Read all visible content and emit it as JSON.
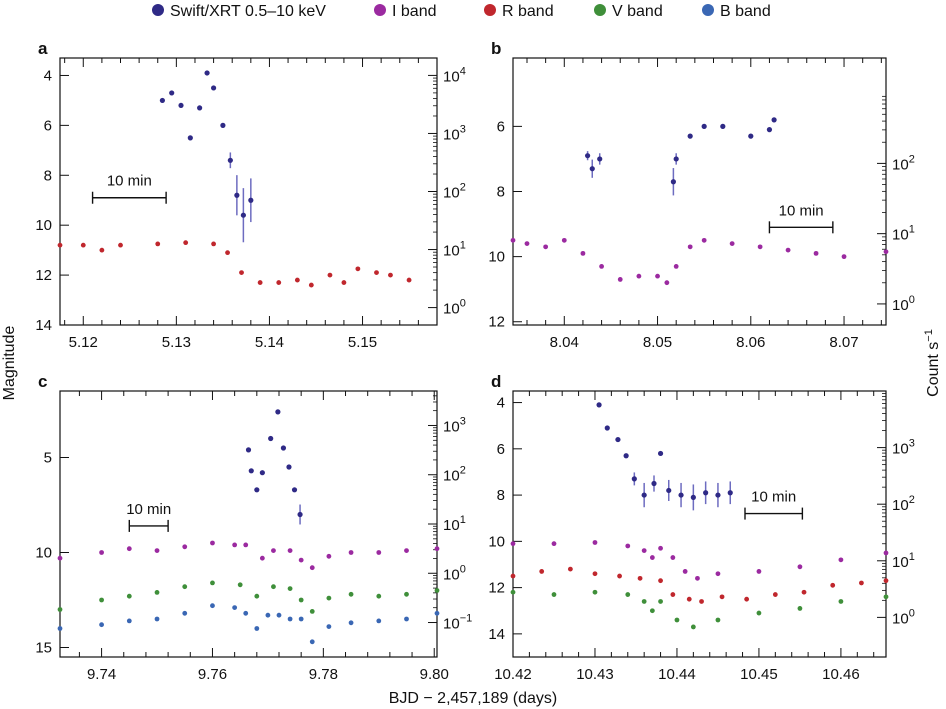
{
  "xlabel": "BJD − 2,457,189 (days)",
  "ylabel_left": "Magnitude",
  "ylabel_right_base": "Count s",
  "ylabel_right_sup": "−1",
  "legend": [
    {
      "label": "Swift/XRT 0.5–10 keV",
      "color": "#2f2a86"
    },
    {
      "label": "I band",
      "color": "#9b2aa0"
    },
    {
      "label": "R band",
      "color": "#c0272d"
    },
    {
      "label": "V band",
      "color": "#3f8f3a"
    },
    {
      "label": "B band",
      "color": "#3a67b4"
    }
  ],
  "chart_data": [
    {
      "panel": "a",
      "type": "scatter",
      "xlim": [
        5.1175,
        5.158
      ],
      "xticks": [
        5.12,
        5.13,
        5.14,
        5.15
      ],
      "ylim_mag": [
        14,
        3.3
      ],
      "yticks_mag": [
        4,
        6,
        8,
        10,
        12,
        14
      ],
      "y2_log_range": [
        -0.3,
        4.3
      ],
      "y2ticks": [
        "10^0",
        "10^1",
        "10^2",
        "10^3",
        "10^4"
      ],
      "scale_bar": {
        "label": "10 min",
        "x_start": 5.121,
        "x_end": 5.1289,
        "mag": 8.9
      },
      "series": [
        {
          "band": "R",
          "color": "#c0272d",
          "pts": [
            [
              5.1175,
              10.8
            ],
            [
              5.12,
              10.8
            ],
            [
              5.122,
              11.0
            ],
            [
              5.124,
              10.8
            ],
            [
              5.128,
              10.75
            ],
            [
              5.131,
              10.7
            ],
            [
              5.134,
              10.75
            ],
            [
              5.1355,
              11.1
            ],
            [
              5.137,
              11.9
            ],
            [
              5.139,
              12.3
            ],
            [
              5.141,
              12.3
            ],
            [
              5.143,
              12.2
            ],
            [
              5.1445,
              12.4
            ],
            [
              5.1465,
              12.0
            ],
            [
              5.148,
              12.3
            ],
            [
              5.1495,
              11.75
            ],
            [
              5.1515,
              11.9
            ],
            [
              5.153,
              12.0
            ],
            [
              5.155,
              12.2
            ]
          ]
        },
        {
          "band": "X-ray",
          "color": "#2f2a86",
          "pts": [
            [
              5.1285,
              5.0
            ],
            [
              5.1295,
              4.7
            ],
            [
              5.1305,
              5.2
            ],
            [
              5.1315,
              6.5
            ],
            [
              5.1325,
              5.3
            ],
            [
              5.1333,
              3.9
            ],
            [
              5.134,
              4.5
            ],
            [
              5.135,
              6.0
            ],
            [
              5.1358,
              7.4
            ],
            [
              5.1365,
              8.8
            ],
            [
              5.1372,
              9.6
            ],
            [
              5.138,
              9.0
            ]
          ]
        }
      ]
    },
    {
      "panel": "b",
      "type": "scatter",
      "xlim": [
        8.0345,
        8.0745
      ],
      "xticks": [
        8.04,
        8.05,
        8.06,
        8.07
      ],
      "ylim_mag": [
        12.1,
        3.9
      ],
      "yticks_mag": [
        6,
        8,
        10,
        12
      ],
      "y2_log_range": [
        -0.3,
        3.5
      ],
      "y2ticks": [
        "10^0",
        "10^1",
        "10^2"
      ],
      "scale_bar": {
        "label": "10 min",
        "x_start": 8.062,
        "x_end": 8.0688,
        "mag": 9.1
      },
      "series": [
        {
          "band": "I",
          "color": "#9b2aa0",
          "pts": [
            [
              8.0345,
              9.5
            ],
            [
              8.036,
              9.6
            ],
            [
              8.038,
              9.7
            ],
            [
              8.04,
              9.5
            ],
            [
              8.042,
              9.9
            ],
            [
              8.044,
              10.3
            ],
            [
              8.046,
              10.7
            ],
            [
              8.048,
              10.6
            ],
            [
              8.05,
              10.6
            ],
            [
              8.051,
              10.8
            ],
            [
              8.052,
              10.3
            ],
            [
              8.0535,
              9.7
            ],
            [
              8.055,
              9.5
            ],
            [
              8.058,
              9.6
            ],
            [
              8.061,
              9.7
            ],
            [
              8.064,
              9.8
            ],
            [
              8.067,
              9.9
            ],
            [
              8.07,
              10.0
            ],
            [
              8.0745,
              9.85
            ]
          ]
        },
        {
          "band": "X-ray",
          "color": "#2f2a86",
          "pts": [
            [
              8.0425,
              6.9
            ],
            [
              8.043,
              7.3
            ],
            [
              8.0438,
              7.0
            ],
            [
              8.0517,
              7.7
            ],
            [
              8.052,
              7.0
            ],
            [
              8.0535,
              6.3
            ],
            [
              8.055,
              6.0
            ],
            [
              8.057,
              6.0
            ],
            [
              8.06,
              6.3
            ],
            [
              8.062,
              6.1
            ],
            [
              8.0625,
              5.8
            ]
          ]
        }
      ]
    },
    {
      "panel": "c",
      "type": "scatter",
      "xlim": [
        9.7325,
        9.8005
      ],
      "xticks": [
        9.74,
        9.76,
        9.78,
        9.8
      ],
      "ylim_mag": [
        15.5,
        1.5
      ],
      "yticks_mag": [
        5,
        10,
        15
      ],
      "y2_log_range": [
        -1.7,
        3.7
      ],
      "y2ticks": [
        "10^-1",
        "10^0",
        "10^1",
        "10^2",
        "10^3"
      ],
      "scale_bar": {
        "label": "10 min",
        "x_start": 9.745,
        "x_end": 9.752,
        "mag": 8.6
      },
      "series": [
        {
          "band": "I",
          "color": "#9b2aa0",
          "pts": [
            [
              9.7325,
              10.3
            ],
            [
              9.74,
              10.0
            ],
            [
              9.745,
              9.8
            ],
            [
              9.75,
              9.9
            ],
            [
              9.755,
              9.7
            ],
            [
              9.76,
              9.5
            ],
            [
              9.764,
              9.6
            ],
            [
              9.766,
              9.6
            ],
            [
              9.769,
              10.3
            ],
            [
              9.771,
              9.9
            ],
            [
              9.774,
              9.9
            ],
            [
              9.776,
              10.4
            ],
            [
              9.778,
              10.8
            ],
            [
              9.781,
              10.2
            ],
            [
              9.785,
              10.0
            ],
            [
              9.79,
              10.0
            ],
            [
              9.795,
              9.9
            ],
            [
              9.8005,
              9.8
            ]
          ]
        },
        {
          "band": "V",
          "color": "#3f8f3a",
          "pts": [
            [
              9.7325,
              13.0
            ],
            [
              9.74,
              12.5
            ],
            [
              9.745,
              12.3
            ],
            [
              9.75,
              12.1
            ],
            [
              9.755,
              11.8
            ],
            [
              9.76,
              11.6
            ],
            [
              9.765,
              11.7
            ],
            [
              9.768,
              12.3
            ],
            [
              9.771,
              11.8
            ],
            [
              9.774,
              11.9
            ],
            [
              9.776,
              12.5
            ],
            [
              9.778,
              13.1
            ],
            [
              9.781,
              12.4
            ],
            [
              9.785,
              12.2
            ],
            [
              9.79,
              12.3
            ],
            [
              9.795,
              12.2
            ],
            [
              9.8005,
              12.0
            ]
          ]
        },
        {
          "band": "B",
          "color": "#3a67b4",
          "pts": [
            [
              9.7325,
              14.0
            ],
            [
              9.74,
              13.8
            ],
            [
              9.745,
              13.6
            ],
            [
              9.75,
              13.5
            ],
            [
              9.755,
              13.2
            ],
            [
              9.76,
              12.8
            ],
            [
              9.764,
              12.9
            ],
            [
              9.766,
              13.2
            ],
            [
              9.768,
              14.0
            ],
            [
              9.77,
              13.3
            ],
            [
              9.772,
              13.3
            ],
            [
              9.774,
              13.5
            ],
            [
              9.776,
              13.5
            ],
            [
              9.778,
              14.7
            ],
            [
              9.781,
              13.9
            ],
            [
              9.785,
              13.7
            ],
            [
              9.79,
              13.6
            ],
            [
              9.795,
              13.5
            ],
            [
              9.8005,
              13.2
            ]
          ]
        },
        {
          "band": "X-ray",
          "color": "#2f2a86",
          "pts": [
            [
              9.7665,
              4.6
            ],
            [
              9.767,
              5.7
            ],
            [
              9.768,
              6.7
            ],
            [
              9.769,
              5.8
            ],
            [
              9.7705,
              4.0
            ],
            [
              9.7718,
              2.6
            ],
            [
              9.7728,
              4.5
            ],
            [
              9.7738,
              5.5
            ],
            [
              9.7748,
              6.7
            ],
            [
              9.7758,
              8.0
            ]
          ]
        }
      ]
    },
    {
      "panel": "d",
      "type": "scatter",
      "xlim": [
        10.42,
        10.4655
      ],
      "xticks": [
        10.42,
        10.43,
        10.44,
        10.45,
        10.46
      ],
      "ylim_mag": [
        15.0,
        3.5
      ],
      "yticks_mag": [
        4,
        6,
        8,
        10,
        12,
        14
      ],
      "y2_log_range": [
        -0.7,
        4.0
      ],
      "y2ticks": [
        "10^0",
        "10^1",
        "10^2",
        "10^3"
      ],
      "scale_bar": {
        "label": "10 min",
        "x_start": 10.4483,
        "x_end": 10.4553,
        "mag": 8.8
      },
      "series": [
        {
          "band": "I",
          "color": "#9b2aa0",
          "pts": [
            [
              10.42,
              10.1
            ],
            [
              10.425,
              10.1
            ],
            [
              10.43,
              10.05
            ],
            [
              10.434,
              10.2
            ],
            [
              10.436,
              10.4
            ],
            [
              10.437,
              10.7
            ],
            [
              10.438,
              10.3
            ],
            [
              10.4395,
              10.7
            ],
            [
              10.441,
              11.3
            ],
            [
              10.4425,
              11.6
            ],
            [
              10.445,
              11.4
            ],
            [
              10.45,
              11.3
            ],
            [
              10.455,
              11.1
            ],
            [
              10.46,
              10.8
            ],
            [
              10.4655,
              10.5
            ]
          ]
        },
        {
          "band": "R",
          "color": "#c0272d",
          "pts": [
            [
              10.42,
              11.5
            ],
            [
              10.4235,
              11.3
            ],
            [
              10.427,
              11.2
            ],
            [
              10.43,
              11.4
            ],
            [
              10.433,
              11.5
            ],
            [
              10.4355,
              11.6
            ],
            [
              10.438,
              11.7
            ],
            [
              10.4395,
              12.3
            ],
            [
              10.4415,
              12.5
            ],
            [
              10.443,
              12.6
            ],
            [
              10.4455,
              12.4
            ],
            [
              10.4485,
              12.5
            ],
            [
              10.452,
              12.3
            ],
            [
              10.4555,
              12.2
            ],
            [
              10.459,
              11.9
            ],
            [
              10.4625,
              11.8
            ],
            [
              10.4655,
              11.7
            ]
          ]
        },
        {
          "band": "V",
          "color": "#3f8f3a",
          "pts": [
            [
              10.42,
              12.2
            ],
            [
              10.425,
              12.3
            ],
            [
              10.43,
              12.2
            ],
            [
              10.434,
              12.3
            ],
            [
              10.436,
              12.6
            ],
            [
              10.437,
              13.0
            ],
            [
              10.438,
              12.6
            ],
            [
              10.44,
              13.4
            ],
            [
              10.442,
              13.7
            ],
            [
              10.445,
              13.4
            ],
            [
              10.45,
              13.1
            ],
            [
              10.455,
              12.9
            ],
            [
              10.46,
              12.6
            ],
            [
              10.4655,
              12.4
            ]
          ]
        },
        {
          "band": "X-ray",
          "color": "#2f2a86",
          "pts": [
            [
              10.4305,
              4.1
            ],
            [
              10.4315,
              5.1
            ],
            [
              10.4328,
              5.6
            ],
            [
              10.4338,
              6.3
            ],
            [
              10.4348,
              7.3
            ],
            [
              10.436,
              8.0
            ],
            [
              10.4372,
              7.5
            ],
            [
              10.438,
              6.2
            ],
            [
              10.439,
              7.8
            ],
            [
              10.4405,
              8.0
            ],
            [
              10.442,
              8.1
            ],
            [
              10.4435,
              7.9
            ],
            [
              10.445,
              8.0
            ],
            [
              10.4465,
              7.9
            ]
          ]
        }
      ]
    }
  ]
}
